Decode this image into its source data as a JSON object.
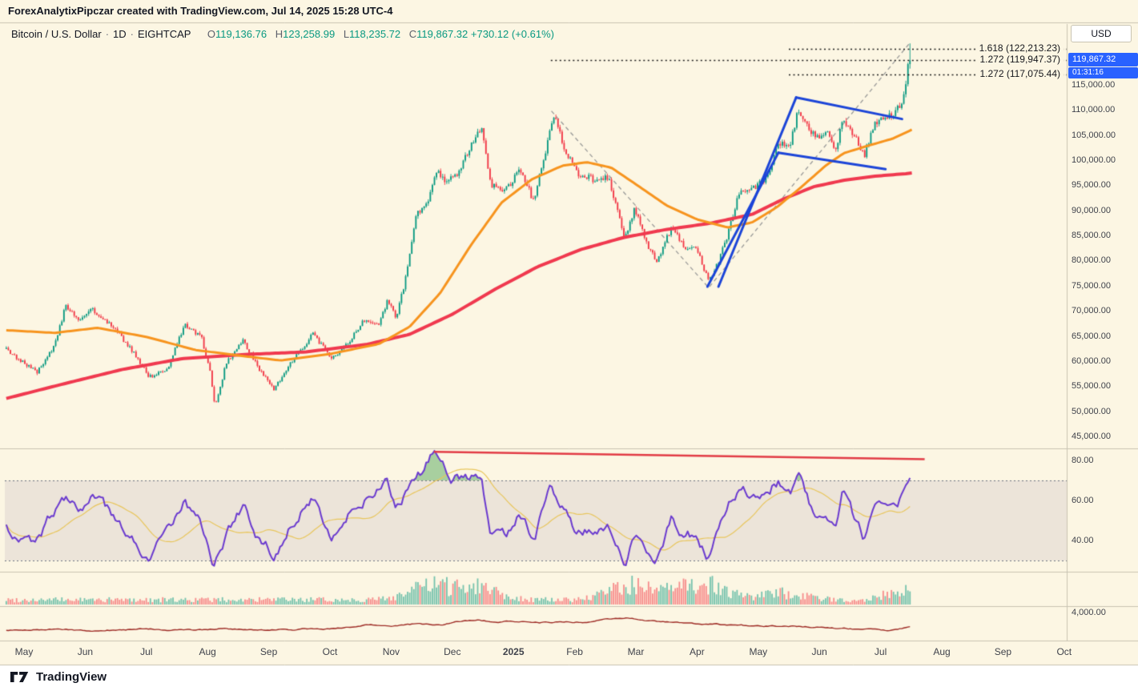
{
  "meta": {
    "attribution": "ForexAnalytixPipczar created with TradingView.com, Jul 14, 2025 15:28 UTC-4"
  },
  "header": {
    "symbol": "Bitcoin / U.S. Dollar",
    "sep": "·",
    "interval": "1D",
    "exchange": "EIGHTCAP",
    "ohlc": {
      "o_label": "O",
      "o": "119,136.76",
      "h_label": "H",
      "h": "123,258.99",
      "l_label": "L",
      "l": "118,235.72",
      "c_label": "C",
      "c": "119,867.32",
      "change": "+730.12 (+0.61%)"
    }
  },
  "axis": {
    "currency_button": "USD",
    "price_ticks": [
      "115,000.00",
      "110,000.00",
      "105,000.00",
      "100,000.00",
      "95,000.00",
      "90,000.00",
      "85,000.00",
      "80,000.00",
      "75,000.00",
      "70,000.00",
      "65,000.00",
      "60,000.00",
      "55,000.00",
      "50,000.00",
      "45,000.00"
    ],
    "rsi_ticks": [
      "80.00",
      "60.00",
      "40.00"
    ],
    "bottom_tick": "4,000.00",
    "time_ticks": [
      "May",
      "Jun",
      "Jul",
      "Aug",
      "Sep",
      "Oct",
      "Nov",
      "Dec",
      "2025",
      "Feb",
      "Mar",
      "Apr",
      "May",
      "Jun",
      "Jul",
      "Aug",
      "Sep",
      "Oct"
    ]
  },
  "price_label": {
    "value": "119,867.32",
    "countdown": "01:31:16",
    "color": "#2962ff"
  },
  "fib_labels": [
    {
      "text": "1.618 (122,213.23)",
      "price": 122213.23,
      "start_month": 12.5
    },
    {
      "text": "1.272 (119,947.37)",
      "price": 119947.37,
      "start_month": 8.61
    },
    {
      "text": "1.272 (117,075.44)",
      "price": 117075.44,
      "start_month": 12.5
    }
  ],
  "footer": {
    "brand": "TradingView"
  },
  "colors": {
    "background": "#fcf6e3",
    "up": "#089981",
    "down": "#f23645",
    "drawing_blue": "#1c45d8",
    "badge": "#2962ff",
    "fib_line": "#1a1a1a",
    "separator": "#c8c3b2"
  },
  "chart_data": {
    "type": "candlestick",
    "title": "Bitcoin / U.S. Dollar, 1D, EIGHTCAP",
    "x_unit": "months_since_May_2024",
    "x_range": [
      -0.29,
      17
    ],
    "price_axis": {
      "min": 45000,
      "max": 115000,
      "tick_step": 5000
    },
    "last_price": 119867.32,
    "series": {
      "price_anchors": [
        [
          -0.4,
          63500
        ],
        [
          -0.1,
          60500
        ],
        [
          0.22,
          57800
        ],
        [
          0.5,
          63000
        ],
        [
          0.68,
          71000
        ],
        [
          0.9,
          68000
        ],
        [
          1.1,
          70300
        ],
        [
          1.45,
          67000
        ],
        [
          1.8,
          61500
        ],
        [
          2.05,
          56800
        ],
        [
          2.35,
          58300
        ],
        [
          2.62,
          67300
        ],
        [
          2.9,
          64800
        ],
        [
          3.05,
          57500
        ],
        [
          3.12,
          50500
        ],
        [
          3.3,
          59500
        ],
        [
          3.58,
          64200
        ],
        [
          3.85,
          58300
        ],
        [
          4.08,
          54300
        ],
        [
          4.4,
          60300
        ],
        [
          4.72,
          65300
        ],
        [
          5.03,
          60600
        ],
        [
          5.3,
          63500
        ],
        [
          5.55,
          68300
        ],
        [
          5.78,
          67000
        ],
        [
          5.95,
          72200
        ],
        [
          6.08,
          68700
        ],
        [
          6.22,
          75500
        ],
        [
          6.42,
          89500
        ],
        [
          6.6,
          91500
        ],
        [
          6.75,
          98200
        ],
        [
          6.9,
          95600
        ],
        [
          7.1,
          97200
        ],
        [
          7.25,
          101500
        ],
        [
          7.48,
          106800
        ],
        [
          7.63,
          94800
        ],
        [
          7.9,
          94200
        ],
        [
          8.1,
          98500
        ],
        [
          8.33,
          91800
        ],
        [
          8.6,
          105800
        ],
        [
          8.68,
          108500
        ],
        [
          8.82,
          102600
        ],
        [
          9.05,
          97400
        ],
        [
          9.3,
          96200
        ],
        [
          9.55,
          96400
        ],
        [
          9.82,
          84300
        ],
        [
          9.98,
          90500
        ],
        [
          10.18,
          83400
        ],
        [
          10.34,
          79800
        ],
        [
          10.58,
          86600
        ],
        [
          10.8,
          82800
        ],
        [
          11.0,
          82300
        ],
        [
          11.18,
          76300
        ],
        [
          11.28,
          77500
        ],
        [
          11.5,
          85200
        ],
        [
          11.68,
          93400
        ],
        [
          11.95,
          94800
        ],
        [
          12.18,
          96900
        ],
        [
          12.32,
          103600
        ],
        [
          12.52,
          103300
        ],
        [
          12.66,
          110300
        ],
        [
          12.82,
          106300
        ],
        [
          13.0,
          104100
        ],
        [
          13.15,
          105600
        ],
        [
          13.27,
          101800
        ],
        [
          13.38,
          108300
        ],
        [
          13.58,
          104600
        ],
        [
          13.74,
          101200
        ],
        [
          13.9,
          107400
        ],
        [
          14.08,
          108200
        ],
        [
          14.25,
          109600
        ],
        [
          14.38,
          112500
        ],
        [
          14.45,
          117800
        ],
        [
          14.48,
          119800
        ]
      ],
      "last_candle": {
        "open": 119136.76,
        "high": 123258.99,
        "low": 118235.72,
        "close": 119867.32
      },
      "ma_fast": {
        "name": "moving-average-fast",
        "color": "#f7941e",
        "anchors": [
          [
            -0.4,
            66200
          ],
          [
            0.5,
            65600
          ],
          [
            1.2,
            66600
          ],
          [
            2.0,
            64800
          ],
          [
            2.8,
            62200
          ],
          [
            3.5,
            61100
          ],
          [
            4.2,
            60100
          ],
          [
            5.0,
            61400
          ],
          [
            5.8,
            63400
          ],
          [
            6.3,
            66800
          ],
          [
            6.8,
            73500
          ],
          [
            7.3,
            83000
          ],
          [
            7.8,
            91500
          ],
          [
            8.3,
            96200
          ],
          [
            8.8,
            98900
          ],
          [
            9.2,
            99600
          ],
          [
            9.6,
            98500
          ],
          [
            10.0,
            95200
          ],
          [
            10.5,
            91000
          ],
          [
            11.0,
            88200
          ],
          [
            11.5,
            86600
          ],
          [
            11.9,
            87600
          ],
          [
            12.3,
            90600
          ],
          [
            12.7,
            94600
          ],
          [
            13.1,
            98900
          ],
          [
            13.4,
            101400
          ],
          [
            13.8,
            102900
          ],
          [
            14.2,
            104300
          ],
          [
            14.55,
            106300
          ]
        ]
      },
      "ma_slow": {
        "name": "moving-average-slow",
        "color": "#f0394f",
        "anchors": [
          [
            -0.4,
            52200
          ],
          [
            0.6,
            55300
          ],
          [
            1.6,
            58300
          ],
          [
            2.6,
            60500
          ],
          [
            3.6,
            61300
          ],
          [
            4.6,
            61800
          ],
          [
            5.6,
            63300
          ],
          [
            6.3,
            65300
          ],
          [
            7.0,
            69300
          ],
          [
            7.7,
            74300
          ],
          [
            8.4,
            78800
          ],
          [
            9.1,
            82200
          ],
          [
            9.8,
            84600
          ],
          [
            10.5,
            86200
          ],
          [
            11.2,
            87400
          ],
          [
            11.9,
            89200
          ],
          [
            12.4,
            92200
          ],
          [
            12.9,
            94700
          ],
          [
            13.4,
            96000
          ],
          [
            13.9,
            96800
          ],
          [
            14.4,
            97300
          ],
          [
            14.62,
            97600
          ]
        ]
      }
    },
    "drawings": {
      "blue_lines": [
        [
          [
            11.17,
            74800
          ],
          [
            12.33,
            101500
          ]
        ],
        [
          [
            11.35,
            74800
          ],
          [
            12.62,
            112500
          ]
        ],
        [
          [
            12.62,
            112500
          ],
          [
            14.35,
            108200
          ]
        ],
        [
          [
            12.33,
            101500
          ],
          [
            14.08,
            98200
          ]
        ]
      ],
      "gray_zigzag": [
        [
          8.62,
          109800
        ],
        [
          11.19,
          74600
        ],
        [
          14.46,
          123100
        ]
      ],
      "fib_extension_levels": [
        122213.23,
        119947.37,
        117075.44
      ]
    },
    "rsi": {
      "color": "#6b3bcf",
      "ma_color": "#e9c65c",
      "trend_color": "#e23b45",
      "upper_band": 70,
      "lower_band": 30,
      "ticks": [
        80,
        60,
        40
      ],
      "trendline": {
        "from": [
          6.7,
          84.3
        ],
        "to": [
          14.72,
          80.6
        ]
      },
      "anchors": [
        [
          -0.4,
          50
        ],
        [
          -0.1,
          42
        ],
        [
          0.2,
          38
        ],
        [
          0.5,
          55
        ],
        [
          0.7,
          63
        ],
        [
          0.95,
          57
        ],
        [
          1.15,
          62
        ],
        [
          1.5,
          49
        ],
        [
          1.85,
          38
        ],
        [
          2.05,
          30
        ],
        [
          2.35,
          44
        ],
        [
          2.62,
          60
        ],
        [
          2.9,
          48
        ],
        [
          3.1,
          27
        ],
        [
          3.35,
          45
        ],
        [
          3.6,
          58
        ],
        [
          3.85,
          41
        ],
        [
          4.08,
          33
        ],
        [
          4.4,
          50
        ],
        [
          4.72,
          62
        ],
        [
          5.03,
          44
        ],
        [
          5.3,
          53
        ],
        [
          5.6,
          62
        ],
        [
          5.95,
          68
        ],
        [
          6.08,
          55
        ],
        [
          6.3,
          66
        ],
        [
          6.55,
          76
        ],
        [
          6.7,
          84
        ],
        [
          6.85,
          77
        ],
        [
          7.0,
          70
        ],
        [
          7.2,
          73
        ],
        [
          7.48,
          70
        ],
        [
          7.63,
          45
        ],
        [
          7.9,
          44
        ],
        [
          8.1,
          55
        ],
        [
          8.33,
          40
        ],
        [
          8.6,
          66
        ],
        [
          8.82,
          54
        ],
        [
          9.05,
          44
        ],
        [
          9.3,
          47
        ],
        [
          9.55,
          49
        ],
        [
          9.82,
          27
        ],
        [
          9.98,
          43
        ],
        [
          10.18,
          34
        ],
        [
          10.34,
          31
        ],
        [
          10.58,
          51
        ],
        [
          10.8,
          42
        ],
        [
          11.0,
          43
        ],
        [
          11.18,
          31
        ],
        [
          11.5,
          56
        ],
        [
          11.68,
          66
        ],
        [
          11.95,
          61
        ],
        [
          12.32,
          70
        ],
        [
          12.52,
          64
        ],
        [
          12.66,
          71
        ],
        [
          12.82,
          58
        ],
        [
          13.0,
          53
        ],
        [
          13.27,
          43
        ],
        [
          13.38,
          61
        ],
        [
          13.58,
          49
        ],
        [
          13.74,
          40
        ],
        [
          13.9,
          57
        ],
        [
          14.08,
          53
        ],
        [
          14.25,
          57
        ],
        [
          14.38,
          63
        ],
        [
          14.48,
          72
        ]
      ]
    },
    "volume": {
      "bumps": [
        [
          6.6,
          0.8
        ],
        [
          7.4,
          0.9
        ],
        [
          9.9,
          0.9
        ],
        [
          10.8,
          0.5
        ],
        [
          11.2,
          0.7
        ],
        [
          12.4,
          0.4
        ],
        [
          14.45,
          0.6
        ]
      ]
    },
    "bottom_indicator": {
      "color": "#9e2b25",
      "axis_label": "4,000.00",
      "anchors": [
        [
          -0.4,
          0.3
        ],
        [
          0.5,
          0.34
        ],
        [
          1.2,
          0.28
        ],
        [
          2.0,
          0.36
        ],
        [
          2.8,
          0.3
        ],
        [
          3.2,
          0.38
        ],
        [
          3.8,
          0.3
        ],
        [
          4.5,
          0.34
        ],
        [
          5.2,
          0.4
        ],
        [
          5.6,
          0.55
        ],
        [
          6.0,
          0.48
        ],
        [
          6.4,
          0.6
        ],
        [
          6.8,
          0.55
        ],
        [
          7.1,
          0.72
        ],
        [
          7.4,
          0.8
        ],
        [
          7.7,
          0.68
        ],
        [
          8.0,
          0.74
        ],
        [
          8.4,
          0.66
        ],
        [
          8.8,
          0.72
        ],
        [
          9.2,
          0.68
        ],
        [
          9.5,
          0.82
        ],
        [
          9.9,
          0.88
        ],
        [
          10.3,
          0.72
        ],
        [
          10.7,
          0.66
        ],
        [
          11.1,
          0.6
        ],
        [
          11.6,
          0.55
        ],
        [
          12.1,
          0.52
        ],
        [
          12.6,
          0.5
        ],
        [
          13.0,
          0.44
        ],
        [
          13.4,
          0.38
        ],
        [
          13.8,
          0.32
        ],
        [
          14.1,
          0.3
        ],
        [
          14.35,
          0.42
        ],
        [
          14.5,
          0.46
        ]
      ]
    }
  }
}
